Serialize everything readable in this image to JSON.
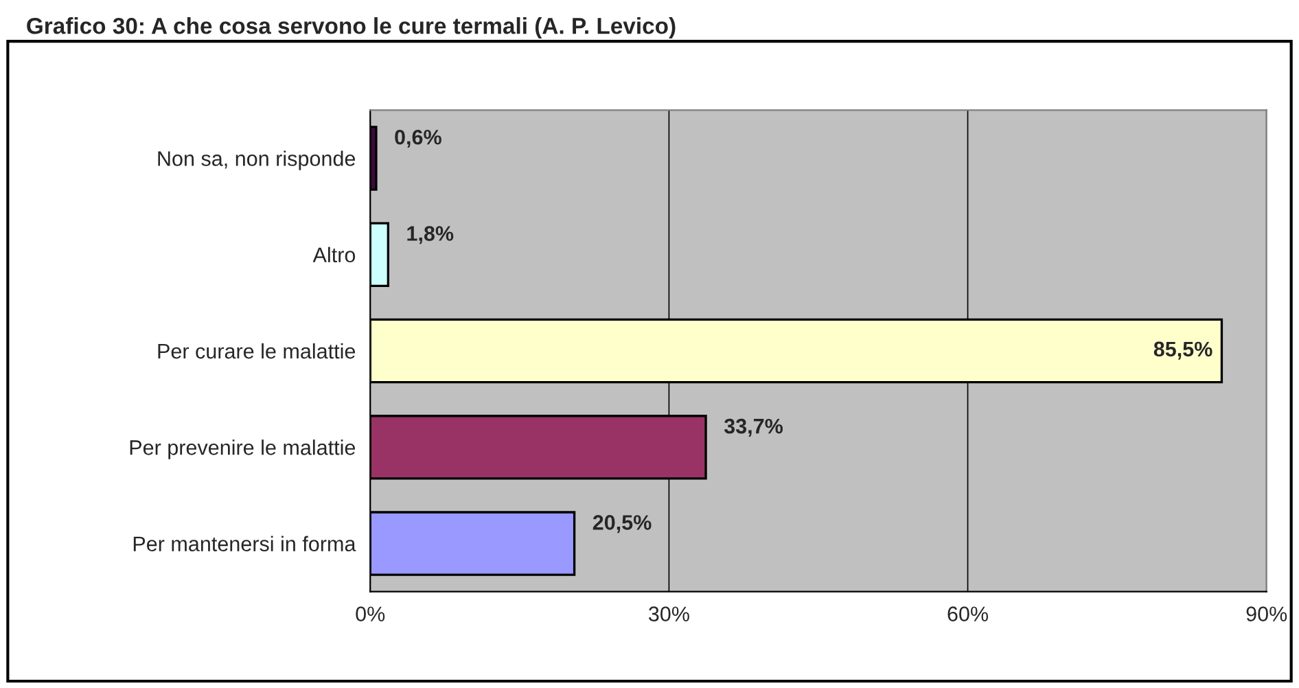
{
  "chart_data": {
    "type": "bar",
    "orientation": "horizontal",
    "title": "Grafico 30: A che cosa servono le cure termali (A. P. Levico)",
    "categories": [
      "Non sa, non risponde",
      "Altro",
      "Per curare le malattie",
      "Per prevenire le malattie",
      "Per mantenersi in forma"
    ],
    "values": [
      0.6,
      1.8,
      85.5,
      33.7,
      20.5
    ],
    "value_labels": [
      "0,6%",
      "1,8%",
      "85,5%",
      "33,7%",
      "20,5%"
    ],
    "colors": [
      "#3d0a3d",
      "#ccffff",
      "#ffffcc",
      "#993366",
      "#9999ff"
    ],
    "xlim": [
      0,
      90
    ],
    "xticks": [
      {
        "value": 0,
        "label": "0%"
      },
      {
        "value": 30,
        "label": "30%"
      },
      {
        "value": 60,
        "label": "60%"
      },
      {
        "value": 90,
        "label": "90%"
      }
    ],
    "grid": "x",
    "legend": false
  }
}
